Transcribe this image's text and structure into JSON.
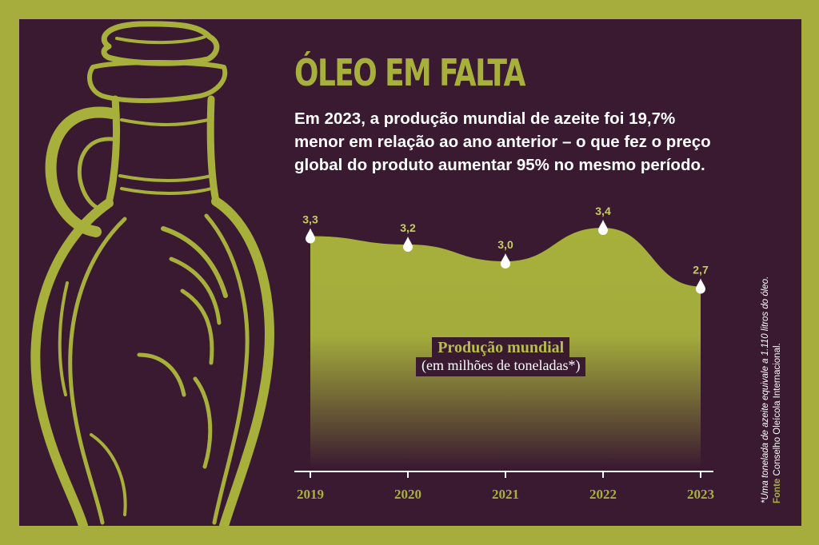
{
  "title": "ÓLEO EM FALTA",
  "subtitle": "Em 2023, a produção mundial de azeite foi 19,7% menor em relação ao ano anterior – o que fez o preço global do produto aumentar 95% no mesmo período.",
  "legend": {
    "title": "Produção mundial",
    "unit": "(em milhões de toneladas*)"
  },
  "footnote": "*Uma tonelada de azeite equivale a 1.110 litros do óleo.",
  "source": {
    "label": "Fonte",
    "text": " Conselho Oleícola Internacional."
  },
  "colors": {
    "background": "#3a1a31",
    "accent": "#a8b03c",
    "text": "#ffffff"
  },
  "chart_data": {
    "type": "area",
    "categories": [
      "2019",
      "2020",
      "2021",
      "2022",
      "2023"
    ],
    "values": [
      3.3,
      3.2,
      3.0,
      3.4,
      2.7
    ],
    "labels": [
      "3,3",
      "3,2",
      "3,0",
      "3,4",
      "2,7"
    ],
    "ylabel": "",
    "marker": "drop-icon",
    "grid": false
  }
}
